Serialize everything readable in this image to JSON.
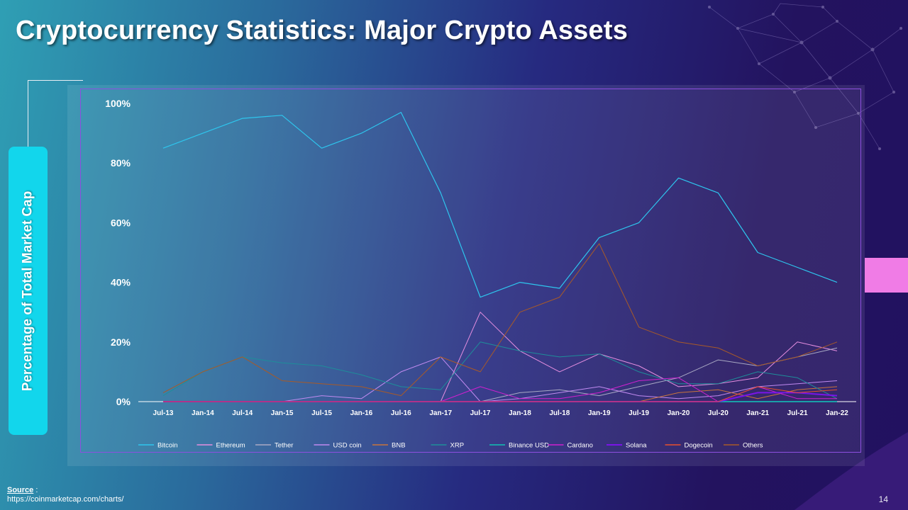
{
  "slide": {
    "title": "Cryptocurrency Statistics: Major Crypto Assets",
    "y_axis_label": "Percentage of Total Market Cap",
    "source_label": "Source",
    "source_sep": " :",
    "source_url": "https://coinmarketcap.com/charts/",
    "page_number": "14"
  },
  "colors": {
    "accent_cyan": "#12d6ec",
    "accent_pink": "#f07ce6",
    "chart_border": "#8e4fe0"
  },
  "chart_data": {
    "type": "line",
    "x": [
      "Jul-13",
      "Jan-14",
      "Jul-14",
      "Jan-15",
      "Jul-15",
      "Jan-16",
      "Jul-16",
      "Jan-17",
      "Jul-17",
      "Jan-18",
      "Jul-18",
      "Jan-19",
      "Jul-19",
      "Jan-20",
      "Jul-20",
      "Jan-21",
      "Jul-21",
      "Jan-22"
    ],
    "ylim": [
      0,
      100
    ],
    "yticks": [
      0,
      20,
      40,
      60,
      80,
      100
    ],
    "ytick_labels": [
      "0%",
      "20%",
      "40%",
      "60%",
      "80%",
      "100%"
    ],
    "legend_position": "bottom",
    "grid": false,
    "series": [
      {
        "name": "Bitcoin",
        "color": "#2ec6ee",
        "width": 1.2,
        "values": [
          85,
          90,
          95,
          96,
          85,
          90,
          97,
          70,
          35,
          40,
          38,
          55,
          60,
          75,
          70,
          50,
          45,
          40
        ]
      },
      {
        "name": "Ethereum",
        "color": "#e58ee0",
        "width": 1.0,
        "values": [
          0,
          0,
          0,
          0,
          0,
          0,
          0,
          0,
          30,
          17,
          10,
          16,
          12,
          5,
          6,
          8,
          20,
          17
        ]
      },
      {
        "name": "Tether",
        "color": "#a9a9c4",
        "width": 1.0,
        "values": [
          0,
          0,
          0,
          0,
          0,
          0,
          0,
          0,
          0,
          3,
          4,
          2,
          5,
          8,
          14,
          12,
          15,
          18
        ]
      },
      {
        "name": "USD coin",
        "color": "#c08af0",
        "width": 1.0,
        "values": [
          0,
          0,
          0,
          0,
          2,
          1,
          10,
          15,
          0,
          1,
          3,
          5,
          2,
          1,
          2,
          5,
          6,
          7
        ]
      },
      {
        "name": "BNB",
        "color": "#c8743c",
        "width": 1.0,
        "values": [
          0,
          0,
          0,
          0,
          0,
          0,
          0,
          0,
          0,
          0,
          0,
          0,
          0,
          3,
          4,
          1,
          4,
          5
        ]
      },
      {
        "name": "XRP",
        "color": "#1e8e9a",
        "width": 1.0,
        "values": [
          2,
          10,
          15,
          13,
          12,
          9,
          5,
          4,
          20,
          17,
          15,
          16,
          10,
          6,
          6,
          10,
          8,
          1
        ]
      },
      {
        "name": "Binance USD",
        "color": "#1aa0a8",
        "width": 2.0,
        "values": [
          0,
          0,
          0,
          0,
          0,
          0,
          0,
          0,
          0,
          0,
          0,
          0,
          0,
          0,
          0,
          0,
          0,
          0
        ]
      },
      {
        "name": "Cardano",
        "color": "#d020d0",
        "width": 1.0,
        "values": [
          0,
          0,
          0,
          0,
          0,
          0,
          0,
          0,
          5,
          1,
          1,
          3,
          7,
          8,
          0,
          5,
          1,
          1
        ]
      },
      {
        "name": "Solana",
        "color": "#7a14e8",
        "width": 2.0,
        "values": [
          0,
          0,
          0,
          0,
          0,
          0,
          0,
          0,
          0,
          0,
          0,
          0,
          0,
          0,
          0,
          3,
          3,
          2
        ]
      },
      {
        "name": "Dogecoin",
        "color": "#e8502c",
        "width": 1.0,
        "values": [
          0,
          0,
          0,
          0,
          0,
          0,
          0,
          0,
          0,
          0,
          0,
          0,
          0,
          0,
          0,
          5,
          3,
          4
        ]
      },
      {
        "name": "Others",
        "color": "#a85a28",
        "width": 1.0,
        "values": [
          3,
          10,
          15,
          7,
          6,
          5,
          2,
          15,
          10,
          30,
          35,
          53,
          25,
          20,
          18,
          12,
          15,
          20
        ]
      }
    ]
  }
}
